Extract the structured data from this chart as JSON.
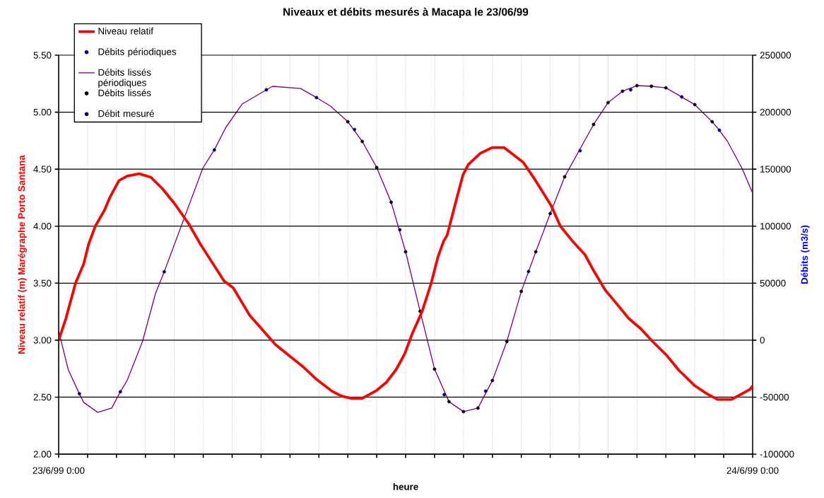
{
  "chart_data": {
    "type": "line",
    "title": "Niveaux et débits mesurés à Macapa le 23/06/99",
    "xlabel": "heure",
    "ylabel": "Niveau relatif (m) Marégraphe Porto Santana",
    "y2label": "Débits (m3/s)",
    "xlim": [
      "1999-06-23T00:00",
      "1999-06-24T00:00"
    ],
    "xticks": [
      {
        "value": "1999-06-23T00:00",
        "label": "23/6/99 0:00"
      },
      {
        "value": "1999-06-23T01:00",
        "label": null
      },
      {
        "value": "1999-06-23T02:00",
        "label": null
      },
      {
        "value": "1999-06-23T03:00",
        "label": null
      },
      {
        "value": "1999-06-23T04:00",
        "label": null
      },
      {
        "value": "1999-06-23T05:00",
        "label": null
      },
      {
        "value": "1999-06-23T06:00",
        "label": null
      },
      {
        "value": "1999-06-23T07:00",
        "label": null
      },
      {
        "value": "1999-06-23T08:00",
        "label": null
      },
      {
        "value": "1999-06-23T09:00",
        "label": null
      },
      {
        "value": "1999-06-23T10:00",
        "label": null
      },
      {
        "value": "1999-06-23T11:00",
        "label": null
      },
      {
        "value": "1999-06-23T12:00",
        "label": null
      },
      {
        "value": "1999-06-23T13:00",
        "label": null
      },
      {
        "value": "1999-06-23T14:00",
        "label": null
      },
      {
        "value": "1999-06-23T15:00",
        "label": null
      },
      {
        "value": "1999-06-23T16:00",
        "label": null
      },
      {
        "value": "1999-06-23T17:00",
        "label": null
      },
      {
        "value": "1999-06-23T18:00",
        "label": null
      },
      {
        "value": "1999-06-23T19:00",
        "label": null
      },
      {
        "value": "1999-06-23T20:00",
        "label": null
      },
      {
        "value": "1999-06-23T21:00",
        "label": null
      },
      {
        "value": "1999-06-23T22:00",
        "label": null
      },
      {
        "value": "1999-06-23T23:00",
        "label": null
      },
      {
        "value": "1999-06-24T00:00",
        "label": "24/6/99 0:00"
      }
    ],
    "ylim": [
      2,
      5.5
    ],
    "yticks": [
      {
        "value": 2,
        "label": "2.00"
      },
      {
        "value": 2.5,
        "label": "2.50"
      },
      {
        "value": 3,
        "label": "3.00"
      },
      {
        "value": 3.5,
        "label": "3.50"
      },
      {
        "value": 4,
        "label": "4.00"
      },
      {
        "value": 4.5,
        "label": "4.50"
      },
      {
        "value": 5,
        "label": "5.00"
      },
      {
        "value": 5.5,
        "label": "5.50"
      }
    ],
    "y2lim": [
      -100000,
      250000
    ],
    "y2ticks": [
      -100000,
      -50000,
      0,
      50000,
      100000,
      150000,
      200000,
      250000
    ],
    "grid": true,
    "legend": "top left",
    "series": [
      {
        "name": "Niveau relatif",
        "axis": "y",
        "color": "#ff0000",
        "marker": "none",
        "x": [
          "1999-06-23T00:00",
          "1999-06-23T00:15",
          "1999-06-23T00:35",
          "1999-06-23T00:52",
          "1999-06-23T01:02",
          "1999-06-23T01:16",
          "1999-06-23T01:35",
          "1999-06-23T01:46",
          "1999-06-23T02:05",
          "1999-06-23T02:22",
          "1999-06-23T02:47",
          "1999-06-23T03:11",
          "1999-06-23T03:35",
          "1999-06-23T04:00",
          "1999-06-23T04:30",
          "1999-06-23T04:53",
          "1999-06-23T05:43",
          "1999-06-23T06:02",
          "1999-06-23T06:36",
          "1999-06-23T07:01",
          "1999-06-23T07:30",
          "1999-06-23T08:29",
          "1999-06-23T08:54",
          "1999-06-23T09:28",
          "1999-06-23T09:47",
          "1999-06-23T10:06",
          "1999-06-23T10:30",
          "1999-06-23T11:00",
          "1999-06-23T11:20",
          "1999-06-23T11:40",
          "1999-06-23T11:58",
          "1999-06-23T12:13",
          "1999-06-23T12:34",
          "1999-06-23T12:53",
          "1999-06-23T13:07",
          "1999-06-23T13:19",
          "1999-06-23T13:26",
          "1999-06-23T13:47",
          "1999-06-23T13:59",
          "1999-06-23T14:10",
          "1999-06-23T14:35",
          "1999-06-23T15:00",
          "1999-06-23T15:24",
          "1999-06-23T16:04",
          "1999-06-23T16:28",
          "1999-06-23T17:02",
          "1999-06-23T17:21",
          "1999-06-23T17:46",
          "1999-06-23T18:12",
          "1999-06-23T18:30",
          "1999-06-23T18:54",
          "1999-06-23T19:10",
          "1999-06-23T19:43",
          "1999-06-23T20:08",
          "1999-06-23T20:32",
          "1999-06-23T21:01",
          "1999-06-23T21:26",
          "1999-06-23T22:00",
          "1999-06-23T22:25",
          "1999-06-23T22:47",
          "1999-06-23T23:16",
          "1999-06-23T23:38",
          "1999-06-23T23:55",
          "1999-06-24T00:00"
        ],
        "values": [
          3.0,
          3.19,
          3.5,
          3.67,
          3.84,
          4.0,
          4.14,
          4.25,
          4.4,
          4.44,
          4.46,
          4.43,
          4.33,
          4.2,
          4.02,
          3.85,
          3.52,
          3.46,
          3.22,
          3.1,
          2.96,
          2.76,
          2.66,
          2.55,
          2.51,
          2.49,
          2.49,
          2.56,
          2.63,
          2.74,
          2.88,
          3.05,
          3.25,
          3.5,
          3.73,
          3.87,
          3.92,
          4.26,
          4.45,
          4.54,
          4.64,
          4.69,
          4.69,
          4.56,
          4.41,
          4.18,
          4.0,
          3.87,
          3.75,
          3.61,
          3.44,
          3.36,
          3.19,
          3.1,
          2.99,
          2.87,
          2.74,
          2.6,
          2.53,
          2.48,
          2.48,
          2.53,
          2.57,
          2.6
        ]
      },
      {
        "name": "Débits périodiques",
        "type": "scatter",
        "axis": "y2",
        "color": "#000080",
        "marker": "circle",
        "x": [
          "1999-06-23T00:43",
          "1999-06-23T02:08",
          "1999-06-23T03:39",
          "1999-06-23T05:23",
          "1999-06-23T07:11",
          "1999-06-23T08:55",
          "1999-06-23T22:51"
        ],
        "values": [
          -47000,
          -45300,
          60000,
          166900,
          219600,
          212800,
          184200
        ]
      },
      {
        "name": "Débits lissés périodiques",
        "type": "line",
        "axis": "y2",
        "color": "#800080",
        "marker": "none",
        "x": [
          "1999-06-23T00:00",
          "1999-06-23T00:20",
          "1999-06-23T00:43",
          "1999-06-23T00:52",
          "1999-06-23T01:21",
          "1999-06-23T01:50",
          "1999-06-23T02:08",
          "1999-06-23T02:22",
          "1999-06-23T02:54",
          "1999-06-23T03:21",
          "1999-06-23T03:39",
          "1999-06-23T04:59",
          "1999-06-23T05:23",
          "1999-06-23T05:47",
          "1999-06-23T06:21",
          "1999-06-23T07:11",
          "1999-06-23T07:24",
          "1999-06-23T08:22",
          "1999-06-23T08:55",
          "1999-06-23T09:24",
          "1999-06-23T10:00",
          "1999-06-23T10:30",
          "1999-06-23T11:00",
          "1999-06-23T11:30",
          "1999-06-23T12:00",
          "1999-06-23T12:30",
          "1999-06-23T13:00",
          "1999-06-23T13:30",
          "1999-06-23T14:00",
          "1999-06-23T14:30",
          "1999-06-23T15:00",
          "1999-06-23T15:30",
          "1999-06-23T16:00",
          "1999-06-23T16:30",
          "1999-06-23T17:00",
          "1999-06-23T17:30",
          "1999-06-23T18:30",
          "1999-06-23T19:00",
          "1999-06-23T19:30",
          "1999-06-23T20:00",
          "1999-06-23T20:30",
          "1999-06-23T21:00",
          "1999-06-23T22:00",
          "1999-06-23T22:36",
          "1999-06-23T22:51",
          "1999-06-23T23:08",
          "1999-06-23T23:38",
          "1999-06-24T00:00"
        ],
        "values": [
          8000,
          -26000,
          -47000,
          -54600,
          -63300,
          -59600,
          -45300,
          -35400,
          -1200,
          41000,
          60000,
          150700,
          166900,
          186700,
          207200,
          219600,
          222700,
          220800,
          212800,
          205300,
          191600,
          174300,
          151400,
          121000,
          77500,
          25400,
          -25400,
          -54000,
          -62700,
          -59600,
          -35400,
          -1200,
          42800,
          77500,
          111000,
          143300,
          189200,
          208400,
          218400,
          223300,
          222700,
          221400,
          206600,
          191600,
          184200,
          174300,
          150700,
          129000
        ]
      },
      {
        "name": "Débits lissés",
        "type": "scatter",
        "axis": "y2",
        "color": "#000000",
        "marker": "circle",
        "x": [
          "1999-06-23T10:00",
          "1999-06-23T10:30",
          "1999-06-23T11:00",
          "1999-06-23T11:30",
          "1999-06-23T12:00",
          "1999-06-23T12:30",
          "1999-06-23T13:00",
          "1999-06-23T13:30",
          "1999-06-23T14:00",
          "1999-06-23T14:30",
          "1999-06-23T15:00",
          "1999-06-23T15:30",
          "1999-06-23T16:00",
          "1999-06-23T16:30",
          "1999-06-23T17:00",
          "1999-06-23T17:30",
          "1999-06-23T18:30",
          "1999-06-23T19:00",
          "1999-06-23T19:30",
          "1999-06-23T20:00",
          "1999-06-23T20:30",
          "1999-06-23T21:00",
          "1999-06-23T22:00",
          "1999-06-23T22:36"
        ],
        "values": [
          191600,
          174300,
          151400,
          121000,
          77500,
          25400,
          -25400,
          -54000,
          -62700,
          -59600,
          -35400,
          -1200,
          42800,
          77500,
          111000,
          143300,
          189200,
          208400,
          218400,
          223300,
          222700,
          221400,
          206600,
          191600
        ]
      },
      {
        "name": "Débit mesuré",
        "type": "scatter",
        "axis": "y2",
        "color": "#000080",
        "marker": "circle",
        "x": [
          "1999-06-23T10:14",
          "1999-06-23T11:48",
          "1999-06-23T13:20",
          "1999-06-23T14:46",
          "1999-06-23T16:15",
          "1999-06-23T18:02",
          "1999-06-23T19:47",
          "1999-06-23T21:33"
        ],
        "values": [
          184800,
          96800,
          -47800,
          -44700,
          60200,
          166200,
          219600,
          213400
        ]
      }
    ]
  }
}
